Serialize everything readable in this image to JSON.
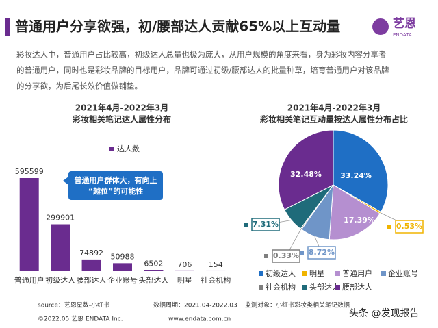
{
  "header": {
    "title": "普通用户分享欲强，初/腰部达人贡献65%以上互动量",
    "logo": "艺恩",
    "logo_sub": "ENDATA"
  },
  "paragraph": [
    "彩妆达人中，普通用户占比较高，初级达人总量也极为庞大，从用户规模的角度来看，身为彩妆内容分享者",
    "的普通用户，同时也是彩妆品牌的目标用户，品牌可通过初级/腰部达人的批量种草，培育普通用户对该品牌",
    "的分享欲，为后尾长效价值做铺垫。"
  ],
  "chart_data": [
    {
      "type": "bar",
      "title": "2021年4月-2022年3月",
      "subtitle": "彩妆相关笔记达人属性分布",
      "legend": "达人数",
      "color": "#6a2c8f",
      "categories": [
        "普通用户",
        "初级达人",
        "腰部达人",
        "企业账号",
        "头部达人",
        "明星",
        "社会机构"
      ],
      "values": [
        595599,
        299901,
        74892,
        50988,
        6502,
        706,
        154
      ],
      "annotations": [
        "普通用户群体大，有向上",
        "“越位”的可能性"
      ]
    },
    {
      "type": "pie",
      "title": "2021年4月-2022年3月",
      "subtitle": "彩妆相关笔记互动量按达人属性分布占比",
      "series": [
        {
          "name": "初级达人",
          "color": "#1f6fc5"
        },
        {
          "name": "明星",
          "color": "#f0b400"
        },
        {
          "name": "普通用户",
          "color": "#b58fd0"
        },
        {
          "name": "企业账号",
          "color": "#6f95c8"
        },
        {
          "name": "社会机构",
          "color": "#7f7f7f"
        },
        {
          "name": "头部达人",
          "color": "#1f6b7a"
        },
        {
          "name": "腰部达人",
          "color": "#6a2c8f"
        }
      ],
      "values": [
        33.24,
        0.53,
        17.39,
        8.72,
        0.33,
        7.31,
        32.48
      ],
      "value_labels": [
        "33.24%",
        "0.53%",
        "17.39%",
        "8.72%",
        "0.33%",
        "7.31%",
        "32.48%"
      ]
    }
  ],
  "footer": {
    "source": "source：艺恩星数-小红书",
    "period": "数据周期：2021.04-2022.03",
    "scope": "监测对象：小红书彩妆类相关笔记数据",
    "copyright": "©2022.05 艺恩 ENDATA Inc.",
    "site": "www.endata.com.cn"
  },
  "watermark": "头条 @发现报告"
}
